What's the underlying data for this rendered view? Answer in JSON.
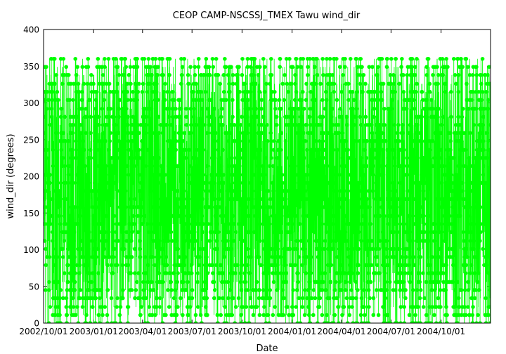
{
  "chart_data": {
    "type": "scatter",
    "title": "CEOP CAMP-NSCSSJ_TMEX Tawu  wind_dir",
    "xlabel": "Date",
    "ylabel": "wind_dir (degrees)",
    "x_start": "2002-10-01",
    "x_end": "2004-12-31",
    "xticks": [
      "2002/10/01",
      "2003/01/01",
      "2003/04/01",
      "2003/07/01",
      "2003/10/01",
      "2004/01/01",
      "2004/04/01",
      "2004/07/01",
      "2004/10/01"
    ],
    "ylim": [
      0,
      400
    ],
    "yticks": [
      0,
      50,
      100,
      150,
      200,
      250,
      300,
      350,
      400
    ],
    "series": [
      {
        "color": "#00ff00",
        "marker": "circle",
        "values_allowed": [
          0,
          11,
          22,
          34,
          45,
          56,
          68,
          79,
          90,
          101,
          112,
          124,
          135,
          146,
          158,
          169,
          180,
          191,
          202,
          214,
          225,
          236,
          248,
          259,
          270,
          281,
          292,
          304,
          315,
          326,
          338,
          349,
          360
        ],
        "sampling": "hourly",
        "sparse_top_period": [
          "2003-09-01",
          "2003-09-30"
        ]
      }
    ],
    "grid": false,
    "legend": "none"
  }
}
